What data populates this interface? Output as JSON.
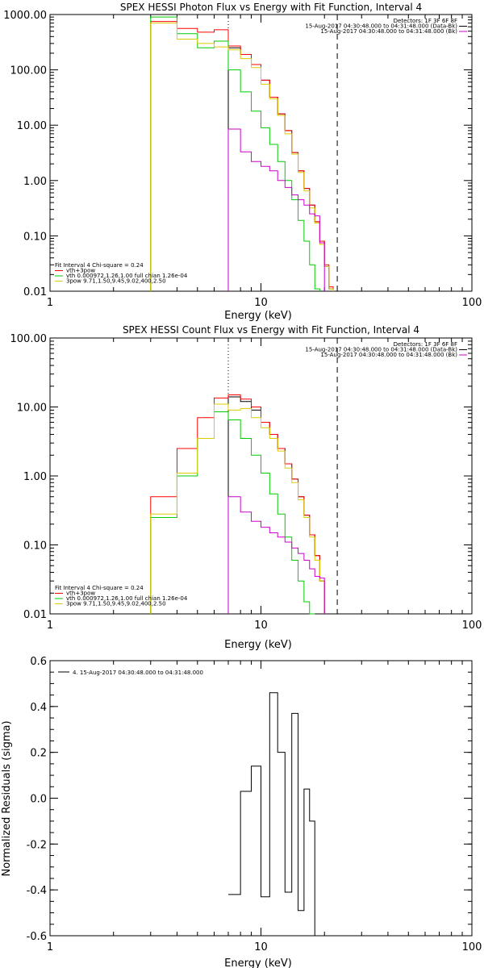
{
  "chart_data": [
    {
      "type": "line",
      "title": "SPEX HESSI Photon Flux vs Energy with Fit Function, Interval 4",
      "xlabel": "Energy (keV)",
      "ylabel": "",
      "xscale": "log",
      "yscale": "log",
      "xlim": [
        1,
        100
      ],
      "ylim": [
        0.01,
        1000
      ],
      "x_ticks": [
        "1",
        "10",
        "100"
      ],
      "y_ticks": [
        "0.01",
        "0.10",
        "1.00",
        "10.00",
        "100.00",
        "1000.00"
      ],
      "info_lines": [
        "Detectors: 1F 3F 6F 8F",
        "15-Aug-2017 04:30:48.000 to 04:31:48.000 (Data-Bk)",
        "15-Aug-2017 04:30:48.000 to 04:31:48.000 (Bk)"
      ],
      "fit_lines": [
        "Fit Interval  4   Chi-square = 0.24",
        "vth+3pow",
        "vth 0.000972,1.26,1.00  full chian 1.26e-04",
        "3pow 9.71,1.50,9.45,9.02,400,2.50"
      ],
      "legend": "bottom-left",
      "edges": [
        3.0,
        4.0,
        5.0,
        6.0,
        7.0,
        8.0,
        9.0,
        10.0,
        11.0,
        12.0,
        13.0,
        14.0,
        15.0,
        16.0,
        17.0,
        18.0,
        19.0,
        20.0,
        21.0,
        22.0,
        24.0,
        26.0,
        28.0
      ],
      "vlines": [
        {
          "x": 7.0,
          "style": "dotted"
        },
        {
          "x": 23.0,
          "style": "dashed"
        }
      ],
      "series": [
        {
          "color": "#000000",
          "start": 7.0,
          "values": [
            250,
            190,
            125,
            65,
            32,
            16,
            8.0,
            3.2,
            1.5,
            0.72,
            0.36,
            0.18,
            0.08,
            0.028,
            0.011
          ]
        },
        {
          "color": "#ff0000",
          "start": 3.0,
          "values": [
            750,
            560,
            480,
            530,
            270,
            190,
            125,
            65,
            32,
            16,
            8.0,
            3.2,
            1.5,
            0.72,
            0.36,
            0.18,
            0.08,
            0.03,
            0.012
          ]
        },
        {
          "color": "#00cc00",
          "start": 3.0,
          "values": [
            900,
            450,
            250,
            330,
            100,
            40,
            18,
            9,
            4.5,
            2.2,
            1.0,
            0.45,
            0.19,
            0.08,
            0.03,
            0.011
          ]
        },
        {
          "color": "#ddcc00",
          "start": 3.0,
          "values": [
            700,
            360,
            300,
            260,
            230,
            160,
            110,
            55,
            30,
            15,
            7.0,
            3.0,
            1.4,
            0.65,
            0.32,
            0.17,
            0.07,
            0.028,
            0.011
          ]
        },
        {
          "color": "#cc00cc",
          "start": 7.0,
          "values": [
            8.5,
            3.3,
            2.2,
            1.8,
            1.5,
            1.0,
            0.75,
            0.55,
            0.45,
            0.36,
            0.25,
            0.23,
            0.075
          ]
        }
      ]
    },
    {
      "type": "line",
      "title": "SPEX HESSI Count Flux vs Energy with Fit Function, Interval 4",
      "xlabel": "Energy (keV)",
      "ylabel": "",
      "xscale": "log",
      "yscale": "log",
      "xlim": [
        1,
        100
      ],
      "ylim": [
        0.01,
        100
      ],
      "x_ticks": [
        "1",
        "10",
        "100"
      ],
      "y_ticks": [
        "0.01",
        "0.10",
        "1.00",
        "10.00",
        "100.00"
      ],
      "info_lines": [
        "Detectors: 1F 3F 6F 8F",
        "15-Aug-2017 04:30:48.000 to 04:31:48.000 (Data-Bk)",
        "15-Aug-2017 04:30:48.000 to 04:31:48.000 (Bk)"
      ],
      "fit_lines": [
        "Fit Interval  4   Chi-square = 0.24",
        "vth+3pow",
        "vth 0.000972,1.26,1.00  full chian 1.26e-04",
        "3pow 9.71,1.50,9.45,9.02,400,2.50"
      ],
      "legend": "bottom-left",
      "edges": [
        3.0,
        4.0,
        5.0,
        6.0,
        7.0,
        8.0,
        9.0,
        10.0,
        11.0,
        12.0,
        13.0,
        14.0,
        15.0,
        16.0,
        17.0,
        18.0,
        19.0,
        20.0,
        21.0,
        22.0,
        24.0
      ],
      "vlines": [
        {
          "x": 7.0,
          "style": "dotted"
        },
        {
          "x": 23.0,
          "style": "dashed"
        }
      ],
      "series": [
        {
          "color": "#000000",
          "start": 7.0,
          "values": [
            14,
            12,
            9,
            6.0,
            4.0,
            2.5,
            1.5,
            0.9,
            0.5,
            0.27,
            0.14,
            0.07,
            0.03
          ]
        },
        {
          "color": "#ff0000",
          "start": 3.0,
          "values": [
            0.5,
            2.5,
            7.0,
            13.5,
            15.0,
            13.0,
            10.0,
            6.0,
            4.0,
            2.5,
            1.5,
            0.9,
            0.5,
            0.27,
            0.14,
            0.07,
            0.03
          ]
        },
        {
          "color": "#00cc00",
          "start": 3.0,
          "values": [
            0.25,
            1.0,
            3.5,
            8.5,
            6.5,
            3.5,
            2.0,
            1.1,
            0.55,
            0.28,
            0.13,
            0.06,
            0.03,
            0.015,
            0.01
          ]
        },
        {
          "color": "#ddcc00",
          "start": 3.0,
          "values": [
            0.28,
            1.1,
            3.5,
            11.0,
            9.0,
            9.5,
            7.0,
            5.0,
            3.5,
            2.3,
            1.3,
            0.8,
            0.45,
            0.25,
            0.13,
            0.06,
            0.03
          ]
        },
        {
          "color": "#cc00cc",
          "start": 7.0,
          "values": [
            0.5,
            0.3,
            0.22,
            0.18,
            0.15,
            0.13,
            0.11,
            0.09,
            0.075,
            0.06,
            0.045,
            0.035,
            0.033
          ]
        }
      ]
    },
    {
      "type": "line",
      "title": "",
      "xlabel": "Energy (keV)",
      "ylabel": "Normalized Residuals (sigma)",
      "xscale": "log",
      "yscale": "linear",
      "xlim": [
        1,
        100
      ],
      "ylim": [
        -0.6,
        0.6
      ],
      "x_ticks": [
        "1",
        "10",
        "100"
      ],
      "y_ticks": [
        "-0.6",
        "-0.4",
        "-0.2",
        "0.0",
        "0.2",
        "0.4",
        "0.6"
      ],
      "legend_entry": "4. 15-Aug-2017 04:30:48.000 to 04:31:48.000",
      "legend": "top-left",
      "edges": [
        7.0,
        8.0,
        9.0,
        10.0,
        11.0,
        12.0,
        13.0,
        14.0,
        15.0,
        16.0,
        17.0,
        18.0,
        19.0,
        20.0,
        21.0,
        22.0,
        23.0
      ],
      "series": [
        {
          "color": "#000000",
          "start": 7.0,
          "values": [
            -0.42,
            0.03,
            0.14,
            -0.43,
            0.46,
            0.2,
            -0.41,
            0.37,
            -0.49,
            0.04,
            -0.1
          ]
        }
      ]
    }
  ]
}
